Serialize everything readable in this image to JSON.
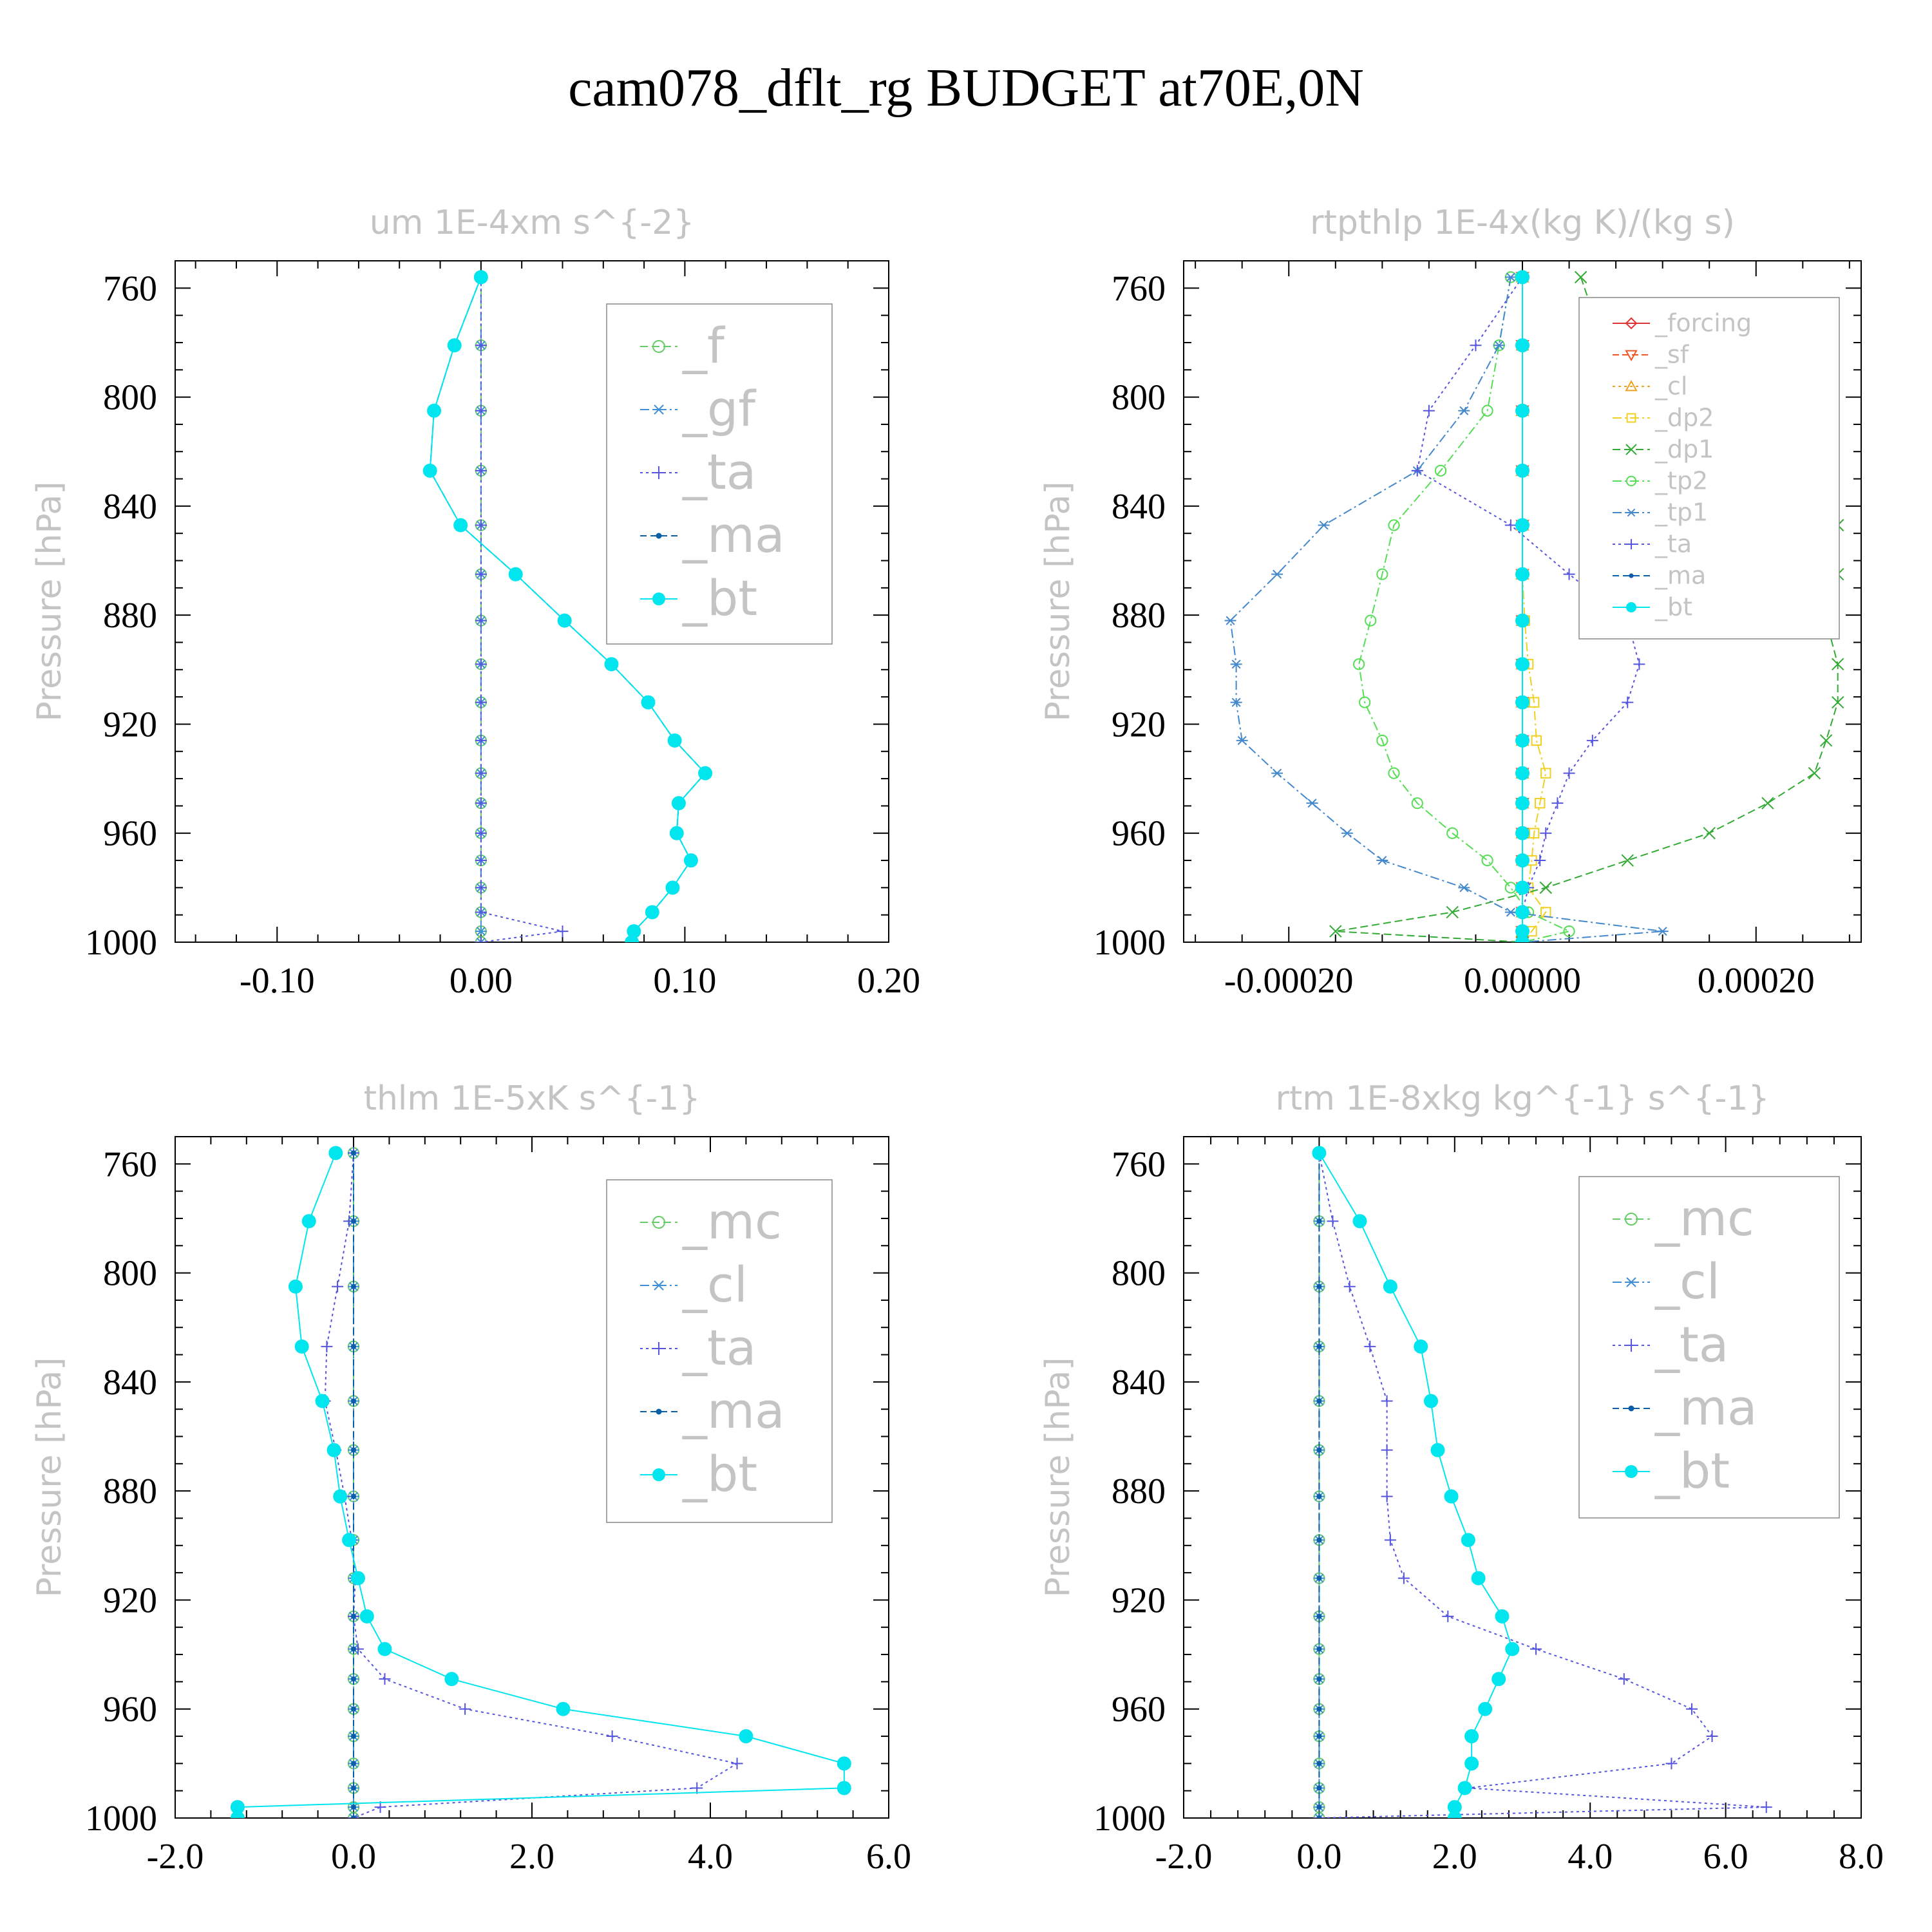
{
  "title": "cam078_dflt_rg  BUDGET at70E,0N",
  "chart_data": [
    {
      "type": "line",
      "title": "um  1E-4xm s^{-2}",
      "xlabel": "",
      "ylabel": "Pressure [hPa]",
      "xlim": [
        -0.15,
        0.2
      ],
      "ylim": [
        1000,
        750
      ],
      "xticks": [
        -0.1,
        0.0,
        0.1,
        0.2
      ],
      "xtick_labels": [
        "-0.10",
        "0.00",
        "0.10",
        "0.20"
      ],
      "yticks": [
        760,
        800,
        840,
        880,
        920,
        960,
        1000
      ],
      "ytick_labels": [
        "760",
        "800",
        "840",
        "880",
        "920",
        "960",
        "1000"
      ],
      "legend_position": "top-right",
      "pressure": [
        756,
        781,
        805,
        827,
        847,
        865,
        882,
        898,
        912,
        926,
        938,
        949,
        960,
        970,
        980,
        989,
        996,
        1000
      ],
      "series": [
        {
          "name": "_f",
          "color": "#66cc66",
          "marker": "circle-open",
          "dash": "12,6",
          "values": [
            0,
            0,
            0,
            0,
            0,
            0,
            0,
            0,
            0,
            0,
            0,
            0,
            0,
            0,
            0,
            0,
            0,
            0
          ]
        },
        {
          "name": "_gf",
          "color": "#3f8fd6",
          "marker": "asterisk",
          "dash": "14,5,3,5",
          "values": [
            0,
            0,
            0,
            0,
            0,
            0,
            0,
            0,
            0,
            0,
            0,
            0,
            0,
            0,
            0,
            0,
            0,
            0
          ]
        },
        {
          "name": "_ta",
          "color": "#5555dd",
          "marker": "plus",
          "dash": "4,5",
          "values": [
            0,
            0,
            0,
            0,
            0,
            0,
            0,
            0,
            0,
            0,
            0,
            0,
            0,
            0,
            0,
            0,
            0.04,
            0
          ]
        },
        {
          "name": "_ma",
          "color": "#0b5ea8",
          "marker": "dot",
          "dash": "10,6",
          "values": [
            0,
            -0.013,
            -0.023,
            -0.025,
            -0.01,
            0.017,
            0.041,
            0.064,
            0.082,
            0.095,
            0.11,
            0.097,
            0.096,
            0.103,
            0.094,
            0.084,
            0.075,
            0.074
          ]
        },
        {
          "name": "_bt",
          "color": "#00e5ee",
          "marker": "disc",
          "dash": "",
          "values": [
            0,
            -0.013,
            -0.023,
            -0.025,
            -0.01,
            0.017,
            0.041,
            0.064,
            0.082,
            0.095,
            0.11,
            0.097,
            0.096,
            0.103,
            0.094,
            0.084,
            0.075,
            0.074
          ]
        }
      ]
    },
    {
      "type": "line",
      "title": "rtpthlp  1E-4x(kg K)/(kg s)",
      "xlabel": "",
      "ylabel": "Pressure [hPa]",
      "xlim": [
        -0.00029,
        0.00029
      ],
      "ylim": [
        1000,
        750
      ],
      "xticks": [
        -0.0002,
        0,
        0.0002
      ],
      "xtick_labels": [
        "-0.00020",
        "0.00000",
        "0.00020"
      ],
      "yticks": [
        760,
        800,
        840,
        880,
        920,
        960,
        1000
      ],
      "ytick_labels": [
        "760",
        "800",
        "840",
        "880",
        "920",
        "960",
        "1000"
      ],
      "legend_position": "top-right",
      "pressure": [
        756,
        781,
        805,
        827,
        847,
        865,
        882,
        898,
        912,
        926,
        938,
        949,
        960,
        970,
        980,
        989,
        996,
        1000
      ],
      "series": [
        {
          "name": "_forcing",
          "color": "#dd3333",
          "marker": "diamond",
          "dash": "",
          "values": [
            0,
            0,
            0,
            0,
            0,
            0,
            0,
            0,
            0,
            0,
            0,
            0,
            0,
            0,
            0,
            0,
            0,
            0
          ]
        },
        {
          "name": "_sf",
          "color": "#ee5522",
          "marker": "triangle-down",
          "dash": "10,5",
          "values": [
            0,
            0,
            0,
            0,
            0,
            0,
            0,
            0,
            0,
            0,
            0,
            0,
            0,
            0,
            0,
            0,
            0,
            0
          ]
        },
        {
          "name": "_cl",
          "color": "#f0a020",
          "marker": "triangle-up",
          "dash": "4,5",
          "values": [
            0,
            0,
            0,
            0,
            0,
            0,
            0,
            0,
            0,
            0,
            0,
            0,
            0,
            0,
            0,
            0,
            0,
            0
          ]
        },
        {
          "name": "_dp2",
          "color": "#f0d020",
          "marker": "square-open",
          "dash": "14,5,3,5",
          "values": [
            0,
            0,
            0,
            0,
            0,
            0,
            2e-06,
            5e-06,
            1e-05,
            1.2e-05,
            2e-05,
            1.5e-05,
            1e-05,
            8e-06,
            5e-06,
            2e-05,
            8e-06,
            0
          ]
        },
        {
          "name": "_dp1",
          "color": "#33aa33",
          "marker": "x",
          "dash": "12,6",
          "values": [
            5e-05,
            7e-05,
            0.00012,
            0.00022,
            0.00027,
            0.00027,
            0.00026,
            0.00027,
            0.00027,
            0.00026,
            0.00025,
            0.00021,
            0.00016,
            9e-05,
            2e-05,
            -6e-05,
            -0.00016,
            0
          ]
        },
        {
          "name": "_tp2",
          "color": "#55dd55",
          "marker": "circle-open",
          "dash": "14,5,3,5",
          "values": [
            -1e-05,
            -2e-05,
            -3e-05,
            -7e-05,
            -0.00011,
            -0.00012,
            -0.00013,
            -0.00014,
            -0.000135,
            -0.00012,
            -0.00011,
            -9e-05,
            -6e-05,
            -3e-05,
            -1e-05,
            5e-06,
            4e-05,
            0
          ]
        },
        {
          "name": "_tp1",
          "color": "#4488cc",
          "marker": "asterisk",
          "dash": "14,5,3,5",
          "values": [
            -1e-05,
            -2e-05,
            -5e-05,
            -9e-05,
            -0.00017,
            -0.00021,
            -0.00025,
            -0.000245,
            -0.000245,
            -0.00024,
            -0.00021,
            -0.00018,
            -0.00015,
            -0.00012,
            -5e-05,
            -1e-05,
            0.00012,
            0
          ]
        },
        {
          "name": "_ta",
          "color": "#5555dd",
          "marker": "plus",
          "dash": "4,5",
          "values": [
            0,
            -4e-05,
            -8e-05,
            -9e-05,
            -1e-05,
            4e-05,
            9e-05,
            0.0001,
            9e-05,
            6e-05,
            4e-05,
            3e-05,
            2e-05,
            1.5e-05,
            5e-06,
            0,
            0,
            0
          ]
        },
        {
          "name": "_ma",
          "color": "#0b5ea8",
          "marker": "dot",
          "dash": "10,6",
          "values": [
            0,
            0,
            0,
            0,
            0,
            0,
            0,
            0,
            0,
            0,
            0,
            0,
            0,
            0,
            0,
            0,
            0,
            0
          ]
        },
        {
          "name": "_bt",
          "color": "#00e5ee",
          "marker": "disc",
          "dash": "",
          "values": [
            0,
            0,
            0,
            0,
            0,
            0,
            0,
            0,
            0,
            0,
            0,
            0,
            0,
            0,
            0,
            0,
            0,
            0
          ]
        }
      ]
    },
    {
      "type": "line",
      "title": "thlm  1E-5xK s^{-1}",
      "xlabel": "",
      "ylabel": "Pressure [hPa]",
      "xlim": [
        -2.0,
        6.0
      ],
      "ylim": [
        1000,
        750
      ],
      "xticks": [
        -2.0,
        0.0,
        2.0,
        4.0,
        6.0
      ],
      "xtick_labels": [
        "-2.0",
        "0.0",
        "2.0",
        "4.0",
        "6.0"
      ],
      "yticks": [
        760,
        800,
        840,
        880,
        920,
        960,
        1000
      ],
      "ytick_labels": [
        "760",
        "800",
        "840",
        "880",
        "920",
        "960",
        "1000"
      ],
      "legend_position": "top-right",
      "pressure": [
        756,
        781,
        805,
        827,
        847,
        865,
        882,
        898,
        912,
        926,
        938,
        949,
        960,
        970,
        980,
        989,
        996,
        1000
      ],
      "series": [
        {
          "name": "_mc",
          "color": "#66cc66",
          "marker": "circle-open",
          "dash": "12,6",
          "values": [
            0,
            0,
            0,
            0,
            0,
            0,
            0,
            0,
            0,
            0,
            0,
            0,
            0,
            0,
            0,
            0,
            0,
            0
          ]
        },
        {
          "name": "_cl",
          "color": "#3f8fd6",
          "marker": "asterisk",
          "dash": "14,5,3,5",
          "values": [
            0,
            0,
            0,
            0,
            0,
            0,
            0,
            0,
            0,
            0,
            0,
            0,
            0,
            0,
            0,
            0,
            0,
            0
          ]
        },
        {
          "name": "_ta",
          "color": "#5555dd",
          "marker": "plus",
          "dash": "4,5",
          "values": [
            0,
            -0.05,
            -0.18,
            -0.3,
            -0.32,
            -0.2,
            -0.1,
            -0.02,
            0.02,
            0.0,
            0.05,
            0.35,
            1.25,
            2.9,
            4.3,
            3.85,
            0.3,
            0
          ]
        },
        {
          "name": "_ma",
          "color": "#0b5ea8",
          "marker": "dot",
          "dash": "10,6",
          "values": [
            0,
            0,
            0,
            0,
            0,
            0,
            0,
            0,
            0,
            0,
            0,
            0,
            0,
            0,
            0,
            0,
            0,
            0
          ]
        },
        {
          "name": "_bt",
          "color": "#00e5ee",
          "marker": "disc",
          "dash": "",
          "values": [
            -0.2,
            -0.5,
            -0.65,
            -0.58,
            -0.35,
            -0.22,
            -0.15,
            -0.05,
            0.05,
            0.15,
            0.35,
            1.1,
            2.35,
            4.4,
            5.5,
            5.5,
            -1.3,
            -1.3
          ]
        }
      ]
    },
    {
      "type": "line",
      "title": "rtm  1E-8xkg kg^{-1} s^{-1}",
      "xlabel": "",
      "ylabel": "Pressure [hPa]",
      "xlim": [
        -2.0,
        8.0
      ],
      "ylim": [
        1000,
        750
      ],
      "xticks": [
        -2.0,
        0.0,
        2.0,
        4.0,
        6.0,
        8.0
      ],
      "xtick_labels": [
        "-2.0",
        "0.0",
        "2.0",
        "4.0",
        "6.0",
        "8.0"
      ],
      "yticks": [
        760,
        800,
        840,
        880,
        920,
        960,
        1000
      ],
      "ytick_labels": [
        "760",
        "800",
        "840",
        "880",
        "920",
        "960",
        "1000"
      ],
      "legend_position": "top-right",
      "pressure": [
        756,
        781,
        805,
        827,
        847,
        865,
        882,
        898,
        912,
        926,
        938,
        949,
        960,
        970,
        980,
        989,
        996,
        1000
      ],
      "series": [
        {
          "name": "_mc",
          "color": "#66cc66",
          "marker": "circle-open",
          "dash": "12,6",
          "values": [
            0,
            0,
            0,
            0,
            0,
            0,
            0,
            0,
            0,
            0,
            0,
            0,
            0,
            0,
            0,
            0,
            0,
            0
          ]
        },
        {
          "name": "_cl",
          "color": "#3f8fd6",
          "marker": "asterisk",
          "dash": "14,5,3,5",
          "values": [
            0,
            0,
            0,
            0,
            0,
            0,
            0,
            0,
            0,
            0,
            0,
            0,
            0,
            0,
            0,
            0,
            0,
            0
          ]
        },
        {
          "name": "_ta",
          "color": "#5555dd",
          "marker": "plus",
          "dash": "4,5",
          "values": [
            0,
            0.2,
            0.45,
            0.75,
            1.0,
            1.0,
            1.0,
            1.05,
            1.25,
            1.9,
            3.2,
            4.5,
            5.5,
            5.8,
            5.2,
            2.2,
            6.6,
            0
          ]
        },
        {
          "name": "_ma",
          "color": "#0b5ea8",
          "marker": "dot",
          "dash": "10,6",
          "values": [
            0,
            0,
            0,
            0,
            0,
            0,
            0,
            0,
            0,
            0,
            0,
            0,
            0,
            0,
            0,
            0,
            0,
            0
          ]
        },
        {
          "name": "_bt",
          "color": "#00e5ee",
          "marker": "disc",
          "dash": "",
          "values": [
            0,
            0.6,
            1.05,
            1.5,
            1.65,
            1.75,
            1.95,
            2.2,
            2.35,
            2.7,
            2.85,
            2.65,
            2.45,
            2.25,
            2.25,
            2.15,
            2.0,
            2.0
          ]
        }
      ]
    }
  ]
}
